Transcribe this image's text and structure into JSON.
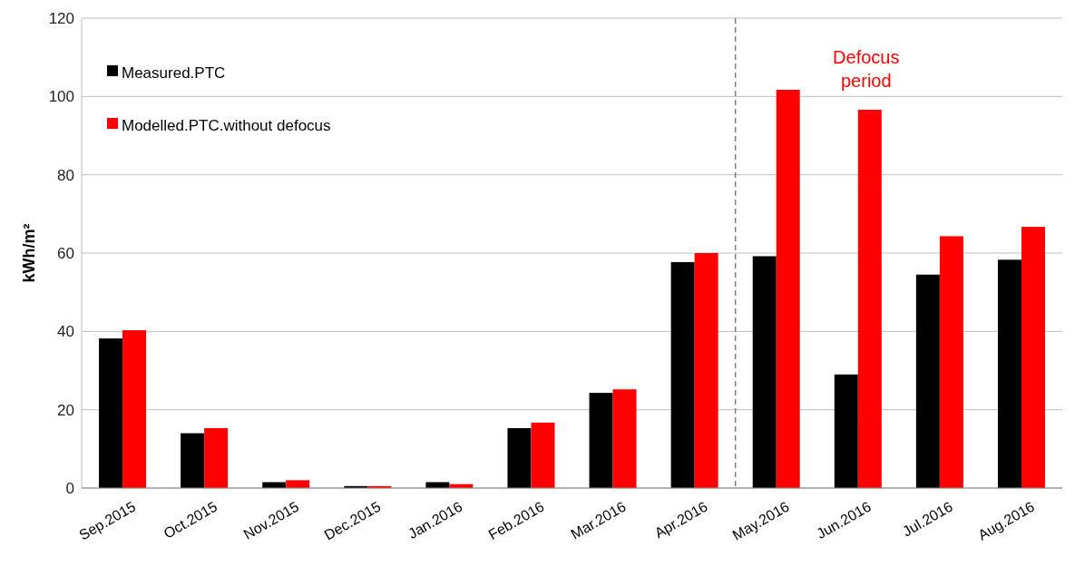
{
  "chart_data": {
    "type": "bar",
    "ylabel": "kWh/m²",
    "categories": [
      "Sep.2015",
      "Oct.2015",
      "Nov.2015",
      "Dec.2015",
      "Jan.2016",
      "Feb.2016",
      "Mar.2016",
      "Apr.2016",
      "May.2016",
      "Jun.2016",
      "Jul.2016",
      "Aug.2016"
    ],
    "series": [
      {
        "name": "Measured.PTC",
        "color": "#000000",
        "values": [
          38.2,
          14,
          1.5,
          0.5,
          1.5,
          15.3,
          24.3,
          57.7,
          59.2,
          29,
          54.5,
          58.3
        ]
      },
      {
        "name": "Modelled.PTC.without defocus",
        "color": "#ff0000",
        "values": [
          40.3,
          15.3,
          2,
          0.5,
          1,
          16.7,
          25.2,
          60,
          101.7,
          96.6,
          64.3,
          66.7
        ]
      }
    ],
    "ylim": [
      0,
      120
    ],
    "yticks": [
      0,
      20,
      40,
      60,
      80,
      100,
      120
    ],
    "grid": "y",
    "legend": "top left",
    "annotations": [
      "Defocus period"
    ],
    "ref_lines": [
      {
        "axis": "x",
        "value": "May.2016",
        "color": "#808080",
        "line_style": "dashed"
      }
    ]
  }
}
